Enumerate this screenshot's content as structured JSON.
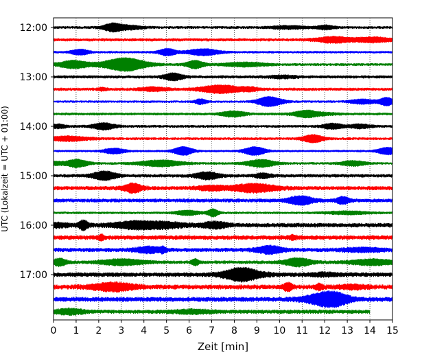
{
  "chart_data": {
    "type": "line",
    "title": "",
    "xlabel": "Zeit  [min]",
    "ylabel": "UTC (Lokalzeit = UTC + 01:00)",
    "xlim": [
      0,
      15
    ],
    "xticks": [
      "0",
      "1",
      "2",
      "3",
      "4",
      "5",
      "6",
      "7",
      "8",
      "9",
      "10",
      "11",
      "12",
      "13",
      "14",
      "15"
    ],
    "yticks": [
      "12:00",
      "13:00",
      "14:00",
      "15:00",
      "16:00",
      "17:00"
    ],
    "grid": "vertical-dotted",
    "legend": "none",
    "trace_colors": [
      "#000000",
      "#ff0000",
      "#0000ff",
      "#008000"
    ],
    "traces": [
      {
        "start": "12:00",
        "color": "#000000",
        "end_min": 15,
        "amp": 1.6
      },
      {
        "start": "12:15",
        "color": "#ff0000",
        "end_min": 15,
        "amp": 1.8
      },
      {
        "start": "12:30",
        "color": "#0000ff",
        "end_min": 15,
        "amp": 1.4
      },
      {
        "start": "12:45",
        "color": "#008000",
        "end_min": 15,
        "amp": 1.6
      },
      {
        "start": "13:00",
        "color": "#000000",
        "end_min": 15,
        "amp": 1.8
      },
      {
        "start": "13:15",
        "color": "#ff0000",
        "end_min": 15,
        "amp": 1.8
      },
      {
        "start": "13:30",
        "color": "#0000ff",
        "end_min": 15,
        "amp": 1.4
      },
      {
        "start": "13:45",
        "color": "#008000",
        "end_min": 15,
        "amp": 1.6
      },
      {
        "start": "14:00",
        "color": "#000000",
        "end_min": 15,
        "amp": 1.6
      },
      {
        "start": "14:15",
        "color": "#ff0000",
        "end_min": 15,
        "amp": 1.6
      },
      {
        "start": "14:30",
        "color": "#0000ff",
        "end_min": 15,
        "amp": 1.3
      },
      {
        "start": "14:45",
        "color": "#008000",
        "end_min": 15,
        "amp": 1.5
      },
      {
        "start": "15:00",
        "color": "#000000",
        "end_min": 15,
        "amp": 2.0
      },
      {
        "start": "15:15",
        "color": "#ff0000",
        "end_min": 15,
        "amp": 2.4
      },
      {
        "start": "15:30",
        "color": "#0000ff",
        "end_min": 15,
        "amp": 2.2
      },
      {
        "start": "15:45",
        "color": "#008000",
        "end_min": 15,
        "amp": 1.4
      },
      {
        "start": "16:00",
        "color": "#000000",
        "end_min": 15,
        "amp": 2.6
      },
      {
        "start": "16:15",
        "color": "#ff0000",
        "end_min": 15,
        "amp": 2.6
      },
      {
        "start": "16:30",
        "color": "#0000ff",
        "end_min": 15,
        "amp": 2.4
      },
      {
        "start": "16:45",
        "color": "#008000",
        "end_min": 15,
        "amp": 2.0
      },
      {
        "start": "17:00",
        "color": "#000000",
        "end_min": 15,
        "amp": 2.6
      },
      {
        "start": "17:15",
        "color": "#ff0000",
        "end_min": 15,
        "amp": 2.8
      },
      {
        "start": "17:30",
        "color": "#0000ff",
        "end_min": 15,
        "amp": 2.8
      },
      {
        "start": "17:45",
        "color": "#008000",
        "end_min": 14,
        "amp": 2.4
      }
    ]
  }
}
